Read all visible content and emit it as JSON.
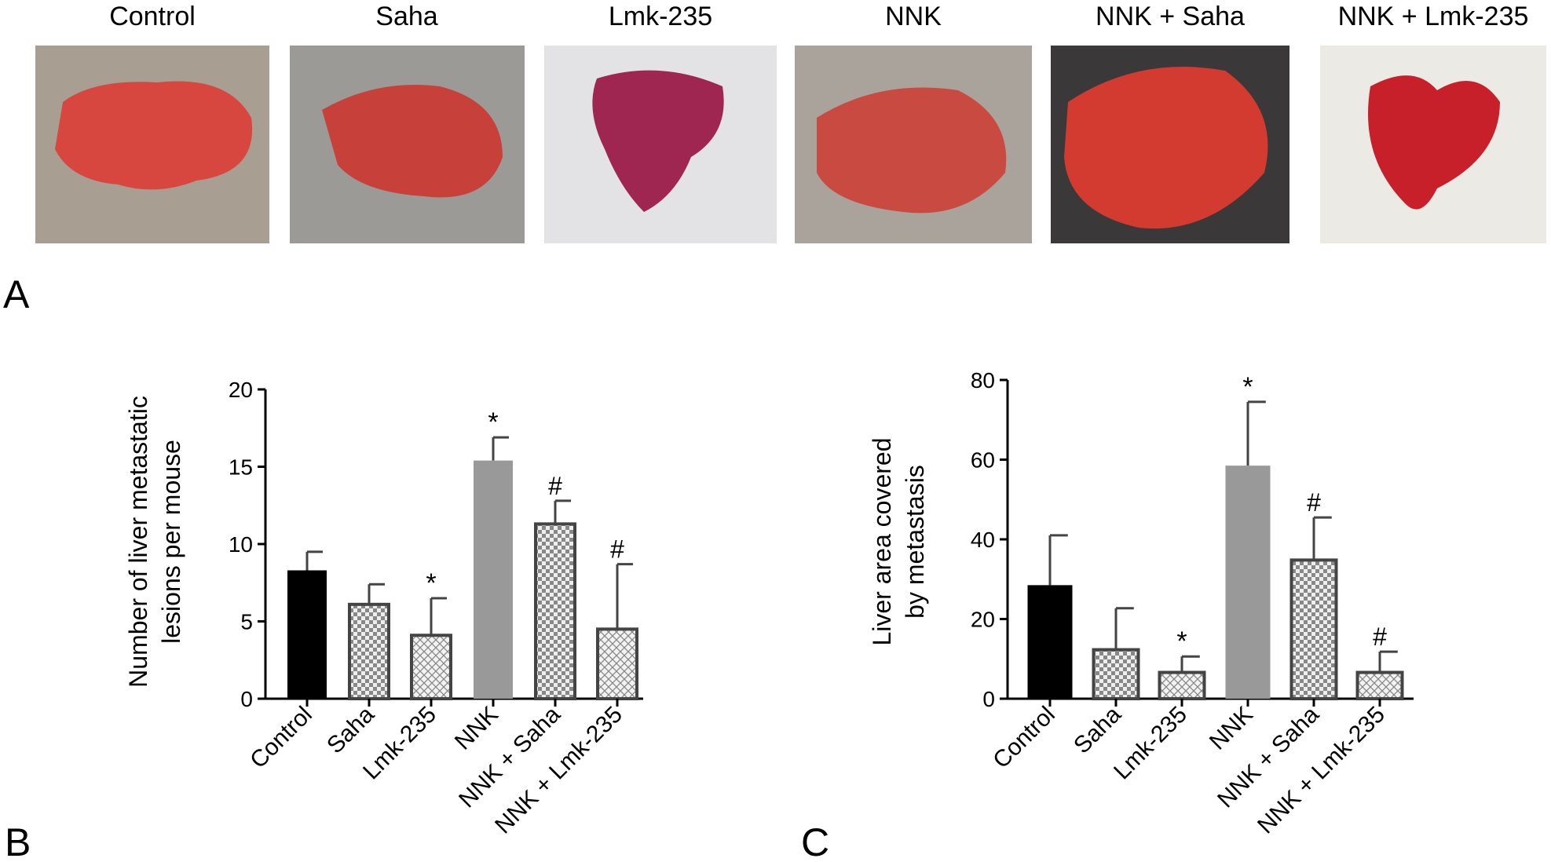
{
  "panel_a": {
    "label": "A",
    "captions": [
      "Control",
      "Saha",
      "Lmk-235",
      "NNK",
      "NNK + Saha",
      "NNK + Lmk-235"
    ]
  },
  "chart_data": [
    {
      "type": "bar",
      "panel_label": "B",
      "ylabel": [
        "Number of liver metastatic",
        "lesions per mouse"
      ],
      "categories": [
        "Control",
        "Saha",
        "Lmk-235",
        "NNK",
        "NNK + Saha",
        "NNK + Lmk-235"
      ],
      "values": [
        8.3,
        6.1,
        4.1,
        15.4,
        11.3,
        4.5
      ],
      "errors": [
        1.2,
        1.3,
        2.4,
        1.5,
        1.5,
        4.2
      ],
      "annotations": [
        null,
        null,
        "*",
        "*",
        "#",
        "#"
      ],
      "fills": [
        "black",
        "checker",
        "crosshatch",
        "gray",
        "checker",
        "crosshatch"
      ],
      "ylim": [
        0,
        20
      ],
      "yticks": [
        0,
        5,
        10,
        15,
        20
      ]
    },
    {
      "type": "bar",
      "panel_label": "C",
      "ylabel": [
        "Liver area covered",
        "by metastasis"
      ],
      "categories": [
        "Control",
        "Saha",
        "Lmk-235",
        "NNK",
        "NNK + Saha",
        "NNK + Lmk-235"
      ],
      "values": [
        28.5,
        12.3,
        6.6,
        58.5,
        34.8,
        6.6
      ],
      "errors": [
        12.5,
        10.4,
        4.0,
        16.0,
        10.7,
        5.2
      ],
      "annotations": [
        null,
        null,
        "*",
        "*",
        "#",
        "#"
      ],
      "fills": [
        "black",
        "checker",
        "crosshatch",
        "gray",
        "checker",
        "crosshatch"
      ],
      "ylim": [
        0,
        80
      ],
      "yticks": [
        0,
        20,
        40,
        60,
        80
      ]
    }
  ]
}
